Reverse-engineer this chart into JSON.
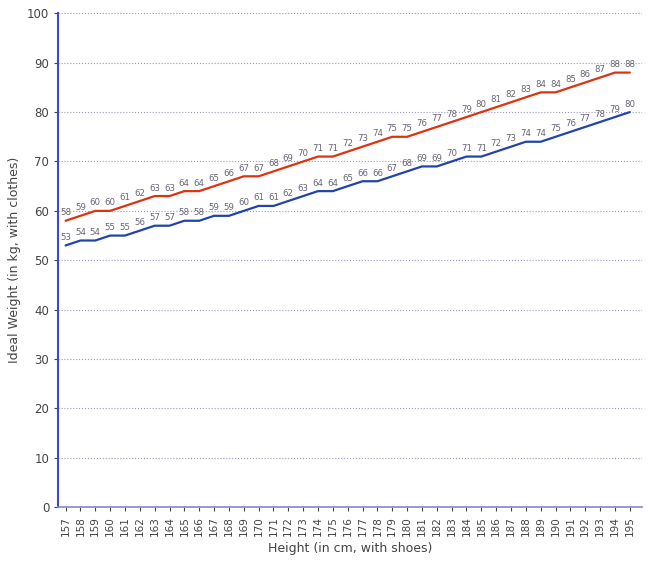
{
  "heights": [
    157,
    158,
    159,
    160,
    161,
    162,
    163,
    164,
    165,
    166,
    167,
    168,
    169,
    170,
    171,
    172,
    173,
    174,
    175,
    176,
    177,
    178,
    179,
    180,
    181,
    182,
    183,
    184,
    185,
    186,
    187,
    188,
    189,
    190,
    191,
    192,
    193,
    194,
    195
  ],
  "male_weights": [
    58,
    59,
    60,
    60,
    61,
    62,
    63,
    63,
    64,
    64,
    65,
    66,
    67,
    67,
    68,
    69,
    70,
    71,
    71,
    72,
    73,
    74,
    75,
    75,
    76,
    77,
    78,
    79,
    80,
    81,
    82,
    83,
    84,
    84,
    85,
    86,
    87,
    88,
    88
  ],
  "female_weights": [
    53,
    54,
    54,
    55,
    55,
    56,
    57,
    57,
    58,
    58,
    59,
    59,
    60,
    61,
    61,
    62,
    63,
    64,
    64,
    65,
    66,
    66,
    67,
    68,
    69,
    69,
    70,
    71,
    71,
    72,
    73,
    74,
    74,
    75,
    76,
    77,
    78,
    79,
    80
  ],
  "male_color": "#dd3311",
  "female_color": "#2244aa",
  "xlabel": "Height (in cm, with shoes)",
  "ylabel": "Ideal Weight (in kg, with clothes)",
  "ylim": [
    0,
    100
  ],
  "xlim": [
    156.5,
    195.8
  ],
  "yticks": [
    0,
    10,
    20,
    30,
    40,
    50,
    60,
    70,
    80,
    90,
    100
  ],
  "background_color": "#ffffff",
  "plot_bg_color": "#ffffff",
  "grid_color": "#9999bb",
  "left_spine_color": "#4444cc",
  "bottom_spine_color": "#8888cc",
  "label_fontsize": 9,
  "tick_fontsize": 7.5,
  "annotation_fontsize": 6.2,
  "annotation_color": "#666677",
  "line_width": 1.6
}
